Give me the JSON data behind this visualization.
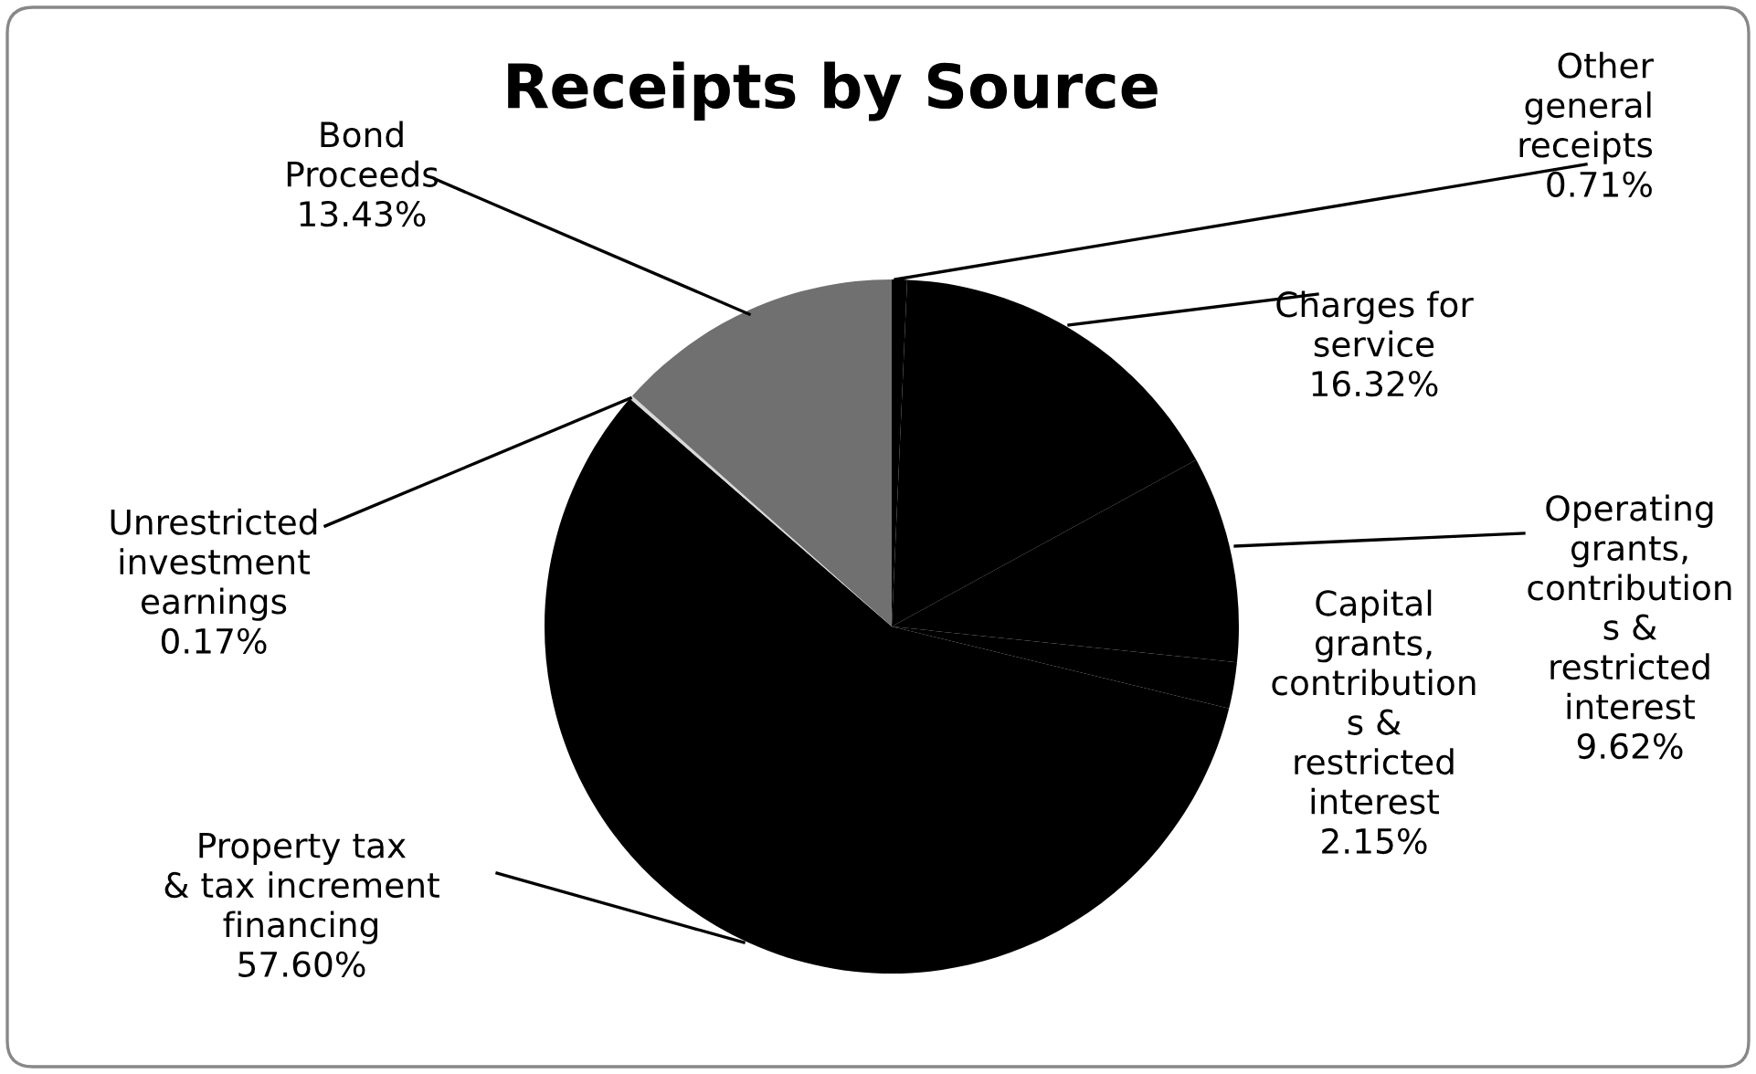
{
  "chart_data": {
    "type": "pie",
    "title": "Receipts by Source",
    "categories": [
      "Other\ngeneral\nreceipts",
      "Charges for\nservice",
      "Operating\ngrants,\ncontribution\ns &\nrestricted\ninterest",
      "Capital\ngrants,\ncontribution\ns &\nrestricted\ninterest",
      "Property tax\n& tax increment\nfinancing",
      "Unrestricted\ninvestment\nearnings",
      "Bond\nProceeds"
    ],
    "values": [
      0.71,
      16.32,
      9.62,
      2.15,
      57.6,
      0.17,
      13.43
    ],
    "value_labels": [
      "0.71%",
      "16.32%",
      "9.62%",
      "2.15%",
      "57.60%",
      "0.17%",
      "13.43%"
    ],
    "colors": [
      "#000000",
      "#000000",
      "#000000",
      "#000000",
      "#000000",
      "#d8d8d8",
      "#707070"
    ],
    "legend": false
  }
}
